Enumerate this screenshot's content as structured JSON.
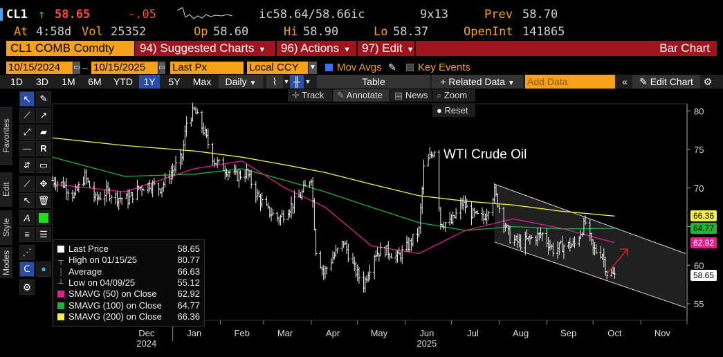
{
  "quote": {
    "ticker": "CL1",
    "arrow": "↑",
    "last": "58.65",
    "change": "-.05",
    "bid_ask": "ic58.64/58.66ic",
    "size": "9x13",
    "prev_label": "Prev",
    "prev": "58.70",
    "at_label": "At",
    "time": "4:58d",
    "vol_label": "Vol",
    "vol": "25352",
    "op_label": "Op",
    "open": "58.60",
    "hi_label": "Hi",
    "hi": "58.90",
    "lo_label": "Lo",
    "lo": "58.37",
    "oi_label": "OpenInt",
    "oi": "141865"
  },
  "funcbar": {
    "security": "CL1 COMB Comdty",
    "suggested": "94) Suggested Charts",
    "actions": "96) Actions",
    "edit": "97) Edit",
    "chart_type": "Bar Chart"
  },
  "settings": {
    "start_date": "10/15/2024",
    "end_date": "10/15/2025",
    "price_field": "Last Px",
    "currency": "Local CCY",
    "mov_avgs": "Mov Avgs",
    "key_events": "Key Events"
  },
  "toolbar": {
    "periods": [
      "1D",
      "3D",
      "1M",
      "6M",
      "YTD",
      "1Y",
      "5Y",
      "Max"
    ],
    "selected_period": "1Y",
    "frequency": "Daily",
    "table": "Table",
    "related": "+ Related Data",
    "add_data_placeholder": "Add Data",
    "edit_chart": "Edit Chart"
  },
  "overlay_buttons": {
    "track": "Track",
    "annotate": "Annotate",
    "news": "News",
    "zoom": "Zoom",
    "reset": "Reset"
  },
  "side_tabs": {
    "favorites": "Favorites",
    "edit": "Edit",
    "style": "Style",
    "modes": "Modes"
  },
  "legend": {
    "rows": [
      {
        "label": "Last Price",
        "value": "58.65",
        "color": "#ffffff"
      },
      {
        "label": "High on 01/15/25",
        "value": "80.77",
        "color": ""
      },
      {
        "label": "Average",
        "value": "66.63",
        "color": ""
      },
      {
        "label": "Low on 04/09/25",
        "value": "55.12",
        "color": ""
      },
      {
        "label": "SMAVG (50)  on Close",
        "value": "62.92",
        "color": "#e0208a"
      },
      {
        "label": "SMAVG (100)  on Close",
        "value": "64.77",
        "color": "#1fb33a"
      },
      {
        "label": "SMAVG (200)  on Close",
        "value": "66.36",
        "color": "#f3ef4a"
      }
    ]
  },
  "colors": {
    "sma50": "#e0208a",
    "sma100": "#1fb33a",
    "sma200": "#f3ef4a",
    "orange": "#f7a11a",
    "red_bar": "#a0141e",
    "annotation_arrow": "#e02020"
  },
  "chart_data": {
    "type": "bar",
    "title": "",
    "annotation": "WTI Crude Oil",
    "x_ticks": [
      "Dec",
      "Jan",
      "Feb",
      "Mar",
      "Apr",
      "May",
      "Jun",
      "Jul",
      "Aug",
      "Sep",
      "Oct",
      "Nov"
    ],
    "year_labels": [
      "2024",
      "2025"
    ],
    "y_ticks": [
      55,
      60,
      65,
      70,
      75,
      80
    ],
    "ylim": [
      52,
      82
    ],
    "price_path": [
      [
        "2024-10-15",
        71.0
      ],
      [
        "2024-10-22",
        70.5
      ],
      [
        "2024-10-29",
        69.0
      ],
      [
        "2024-11-05",
        71.5
      ],
      [
        "2024-11-12",
        68.5
      ],
      [
        "2024-11-19",
        69.5
      ],
      [
        "2024-11-26",
        68.8
      ],
      [
        "2024-12-03",
        68.5
      ],
      [
        "2024-12-10",
        70.0
      ],
      [
        "2024-12-17",
        70.5
      ],
      [
        "2024-12-24",
        70.0
      ],
      [
        "2024-12-31",
        72.0
      ],
      [
        "2025-01-07",
        74.0
      ],
      [
        "2025-01-10",
        78.5
      ],
      [
        "2025-01-15",
        80.0
      ],
      [
        "2025-01-21",
        77.5
      ],
      [
        "2025-01-28",
        73.5
      ],
      [
        "2025-02-04",
        72.5
      ],
      [
        "2025-02-11",
        71.5
      ],
      [
        "2025-02-18",
        72.0
      ],
      [
        "2025-02-25",
        69.0
      ],
      [
        "2025-03-04",
        67.0
      ],
      [
        "2025-03-11",
        66.0
      ],
      [
        "2025-03-18",
        67.5
      ],
      [
        "2025-03-25",
        69.0
      ],
      [
        "2025-04-01",
        71.5
      ],
      [
        "2025-04-04",
        62.0
      ],
      [
        "2025-04-09",
        59.0
      ],
      [
        "2025-04-15",
        61.0
      ],
      [
        "2025-04-22",
        63.0
      ],
      [
        "2025-04-29",
        59.5
      ],
      [
        "2025-05-05",
        57.5
      ],
      [
        "2025-05-12",
        61.5
      ],
      [
        "2025-05-19",
        62.0
      ],
      [
        "2025-05-27",
        61.0
      ],
      [
        "2025-06-03",
        62.5
      ],
      [
        "2025-06-10",
        64.5
      ],
      [
        "2025-06-13",
        72.5
      ],
      [
        "2025-06-20",
        75.0
      ],
      [
        "2025-06-24",
        65.5
      ],
      [
        "2025-07-01",
        65.5
      ],
      [
        "2025-07-08",
        68.0
      ],
      [
        "2025-07-15",
        66.5
      ],
      [
        "2025-07-22",
        66.0
      ],
      [
        "2025-07-29",
        69.5
      ],
      [
        "2025-08-01",
        67.5
      ],
      [
        "2025-08-08",
        63.5
      ],
      [
        "2025-08-15",
        62.8
      ],
      [
        "2025-08-22",
        63.5
      ],
      [
        "2025-08-29",
        64.0
      ],
      [
        "2025-09-05",
        62.0
      ],
      [
        "2025-09-12",
        62.5
      ],
      [
        "2025-09-19",
        62.7
      ],
      [
        "2025-09-26",
        65.5
      ],
      [
        "2025-10-01",
        62.0
      ],
      [
        "2025-10-07",
        61.5
      ],
      [
        "2025-10-10",
        59.0
      ],
      [
        "2025-10-15",
        58.65
      ]
    ],
    "sma50_path": [
      [
        "2024-10-15",
        70.5
      ],
      [
        "2024-12-01",
        69.5
      ],
      [
        "2025-01-15",
        72.5
      ],
      [
        "2025-02-15",
        73.5
      ],
      [
        "2025-03-15",
        70.0
      ],
      [
        "2025-04-10",
        67.5
      ],
      [
        "2025-05-10",
        62.5
      ],
      [
        "2025-06-10",
        61.5
      ],
      [
        "2025-07-10",
        64.5
      ],
      [
        "2025-08-10",
        66.0
      ],
      [
        "2025-09-10",
        64.8
      ],
      [
        "2025-10-15",
        62.92
      ]
    ],
    "sma100_path": [
      [
        "2024-10-15",
        74.0
      ],
      [
        "2024-12-01",
        71.5
      ],
      [
        "2025-01-15",
        71.8
      ],
      [
        "2025-02-15",
        72.5
      ],
      [
        "2025-03-15",
        71.0
      ],
      [
        "2025-04-10",
        69.5
      ],
      [
        "2025-05-10",
        67.5
      ],
      [
        "2025-06-10",
        65.5
      ],
      [
        "2025-07-10",
        64.5
      ],
      [
        "2025-08-10",
        65.0
      ],
      [
        "2025-09-10",
        64.7
      ],
      [
        "2025-10-15",
        64.77
      ]
    ],
    "sma200_path": [
      [
        "2024-10-15",
        76.5
      ],
      [
        "2024-12-01",
        75.5
      ],
      [
        "2025-01-15",
        74.8
      ],
      [
        "2025-02-15",
        74.0
      ],
      [
        "2025-03-15",
        73.0
      ],
      [
        "2025-04-10",
        72.0
      ],
      [
        "2025-05-10",
        70.5
      ],
      [
        "2025-06-10",
        69.0
      ],
      [
        "2025-07-10",
        68.3
      ],
      [
        "2025-08-10",
        67.8
      ],
      [
        "2025-09-10",
        67.0
      ],
      [
        "2025-10-15",
        66.36
      ]
    ],
    "channel": {
      "upper": [
        [
          "2025-07-29",
          70.5
        ],
        [
          "2025-11-30",
          61.5
        ]
      ],
      "lower": [
        [
          "2025-07-29",
          63.0
        ],
        [
          "2025-11-30",
          54.5
        ]
      ]
    },
    "tags": [
      {
        "value": "66.36",
        "color": "#f3ef4a",
        "y": 66.36
      },
      {
        "value": "64.77",
        "color": "#1fb33a",
        "y": 64.77
      },
      {
        "value": "62.92",
        "color": "#e0208a",
        "y": 62.92
      },
      {
        "value": "58.65",
        "color": "#ffffff",
        "y": 58.65
      }
    ]
  }
}
